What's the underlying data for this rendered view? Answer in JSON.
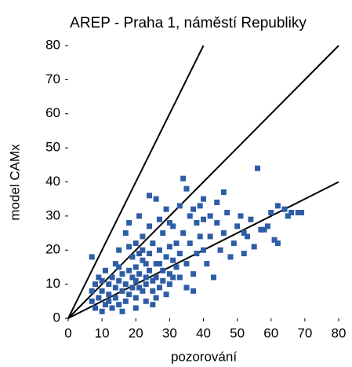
{
  "chart_data": {
    "type": "scatter",
    "title": "AREP - Praha 1, náměstí Republiky",
    "x_label": "pozorování",
    "y_label": "model CAMx",
    "xlim": [
      0,
      80
    ],
    "ylim": [
      0,
      80
    ],
    "xticks": [
      0,
      10,
      20,
      30,
      40,
      50,
      60,
      70,
      80
    ],
    "yticks": [
      0,
      10,
      20,
      30,
      40,
      50,
      60,
      70,
      80
    ],
    "color": "#2e5da6",
    "x": [
      7,
      7,
      7,
      8,
      8,
      9,
      9,
      10,
      10,
      11,
      11,
      12,
      12,
      13,
      13,
      14,
      14,
      14,
      15,
      15,
      15,
      16,
      16,
      17,
      17,
      17,
      18,
      18,
      18,
      19,
      19,
      19,
      20,
      20,
      20,
      20,
      21,
      21,
      21,
      22,
      22,
      22,
      23,
      23,
      23,
      24,
      24,
      24,
      25,
      25,
      25,
      26,
      26,
      26,
      27,
      27,
      27,
      28,
      28,
      28,
      29,
      29,
      30,
      30,
      30,
      31,
      31,
      32,
      32,
      33,
      33,
      34,
      34,
      35,
      35,
      36,
      36,
      37,
      37,
      38,
      38,
      39,
      39,
      40,
      40,
      41,
      42,
      42,
      43,
      44,
      45,
      46,
      47,
      48,
      49,
      50,
      51,
      52,
      53,
      54,
      55,
      56,
      57,
      58,
      60,
      61,
      62,
      64,
      65,
      66,
      68,
      69,
      35,
      37,
      24,
      40,
      30,
      22,
      15,
      10,
      12,
      16,
      20,
      25,
      18,
      33,
      44,
      46,
      52,
      59,
      62,
      27,
      29,
      31,
      26,
      23,
      21
    ],
    "values": [
      18,
      8,
      5,
      3,
      10,
      12,
      6,
      2,
      8,
      4,
      14,
      7,
      10,
      3,
      12,
      6,
      9,
      16,
      11,
      4,
      20,
      8,
      13,
      25,
      10,
      5,
      14,
      7,
      28,
      12,
      9,
      18,
      6,
      11,
      22,
      15,
      30,
      9,
      13,
      8,
      17,
      24,
      12,
      10,
      5,
      19,
      14,
      27,
      11,
      8,
      22,
      35,
      16,
      12,
      9,
      20,
      29,
      14,
      25,
      11,
      18,
      32,
      13,
      21,
      10,
      27,
      17,
      15,
      22,
      12,
      19,
      41,
      25,
      9,
      16,
      30,
      22,
      13,
      8,
      28,
      19,
      33,
      24,
      35,
      20,
      16,
      30,
      24,
      12,
      28,
      20,
      25,
      31,
      18,
      22,
      27,
      30,
      19,
      24,
      29,
      21,
      44,
      26,
      26,
      31,
      23,
      22,
      32,
      30,
      31,
      31,
      31,
      38,
      32,
      36,
      29,
      28,
      20,
      15,
      11,
      5,
      2,
      3,
      4,
      21,
      33,
      34,
      37,
      25,
      27,
      33,
      16,
      7,
      12,
      6,
      16,
      19
    ],
    "ref_lines": [
      {
        "x": [
          0,
          40
        ],
        "values": [
          0,
          80
        ]
      },
      {
        "x": [
          0,
          80
        ],
        "values": [
          0,
          80
        ]
      },
      {
        "x": [
          0,
          80
        ],
        "values": [
          0,
          40
        ]
      }
    ],
    "ref_color": "#000000"
  }
}
